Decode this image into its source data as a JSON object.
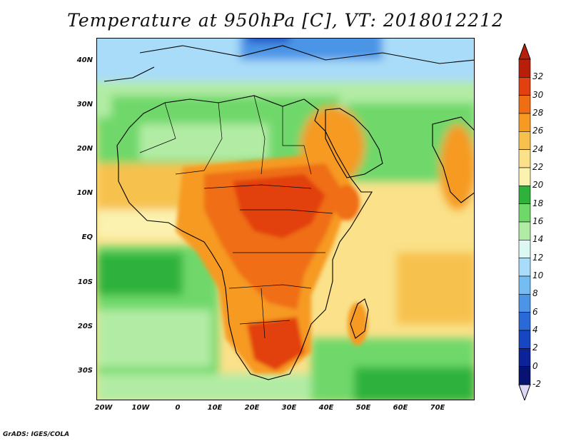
{
  "title": "Temperature at 950hPa [C], VT: 2018012212",
  "credit": "GrADS: IGES/COLA",
  "map": {
    "lat_labels": [
      "40N",
      "30N",
      "20N",
      "10N",
      "EQ",
      "10S",
      "20S",
      "30S"
    ],
    "lon_labels": [
      "20W",
      "10W",
      "0",
      "10E",
      "20E",
      "30E",
      "40E",
      "50E",
      "60E",
      "70E"
    ]
  },
  "colorbar": {
    "labels": [
      "32",
      "30",
      "28",
      "26",
      "24",
      "22",
      "20",
      "18",
      "16",
      "14",
      "12",
      "10",
      "8",
      "6",
      "4",
      "2",
      "0",
      "-2"
    ],
    "colors": [
      "#b81e0a",
      "#e2400e",
      "#ef6e13",
      "#f69a24",
      "#f7c14d",
      "#fae18a",
      "#fbf2b0",
      "#2eb23c",
      "#6fd86a",
      "#b2eca4",
      "#ddf7f2",
      "#a9dcf8",
      "#73bdf3",
      "#4c95e6",
      "#2a6ad8",
      "#1646c2",
      "#0b2299",
      "#081273"
    ],
    "top_triangle_color": "#b81e0a",
    "bottom_triangle_color": "#dcd8f8"
  }
}
